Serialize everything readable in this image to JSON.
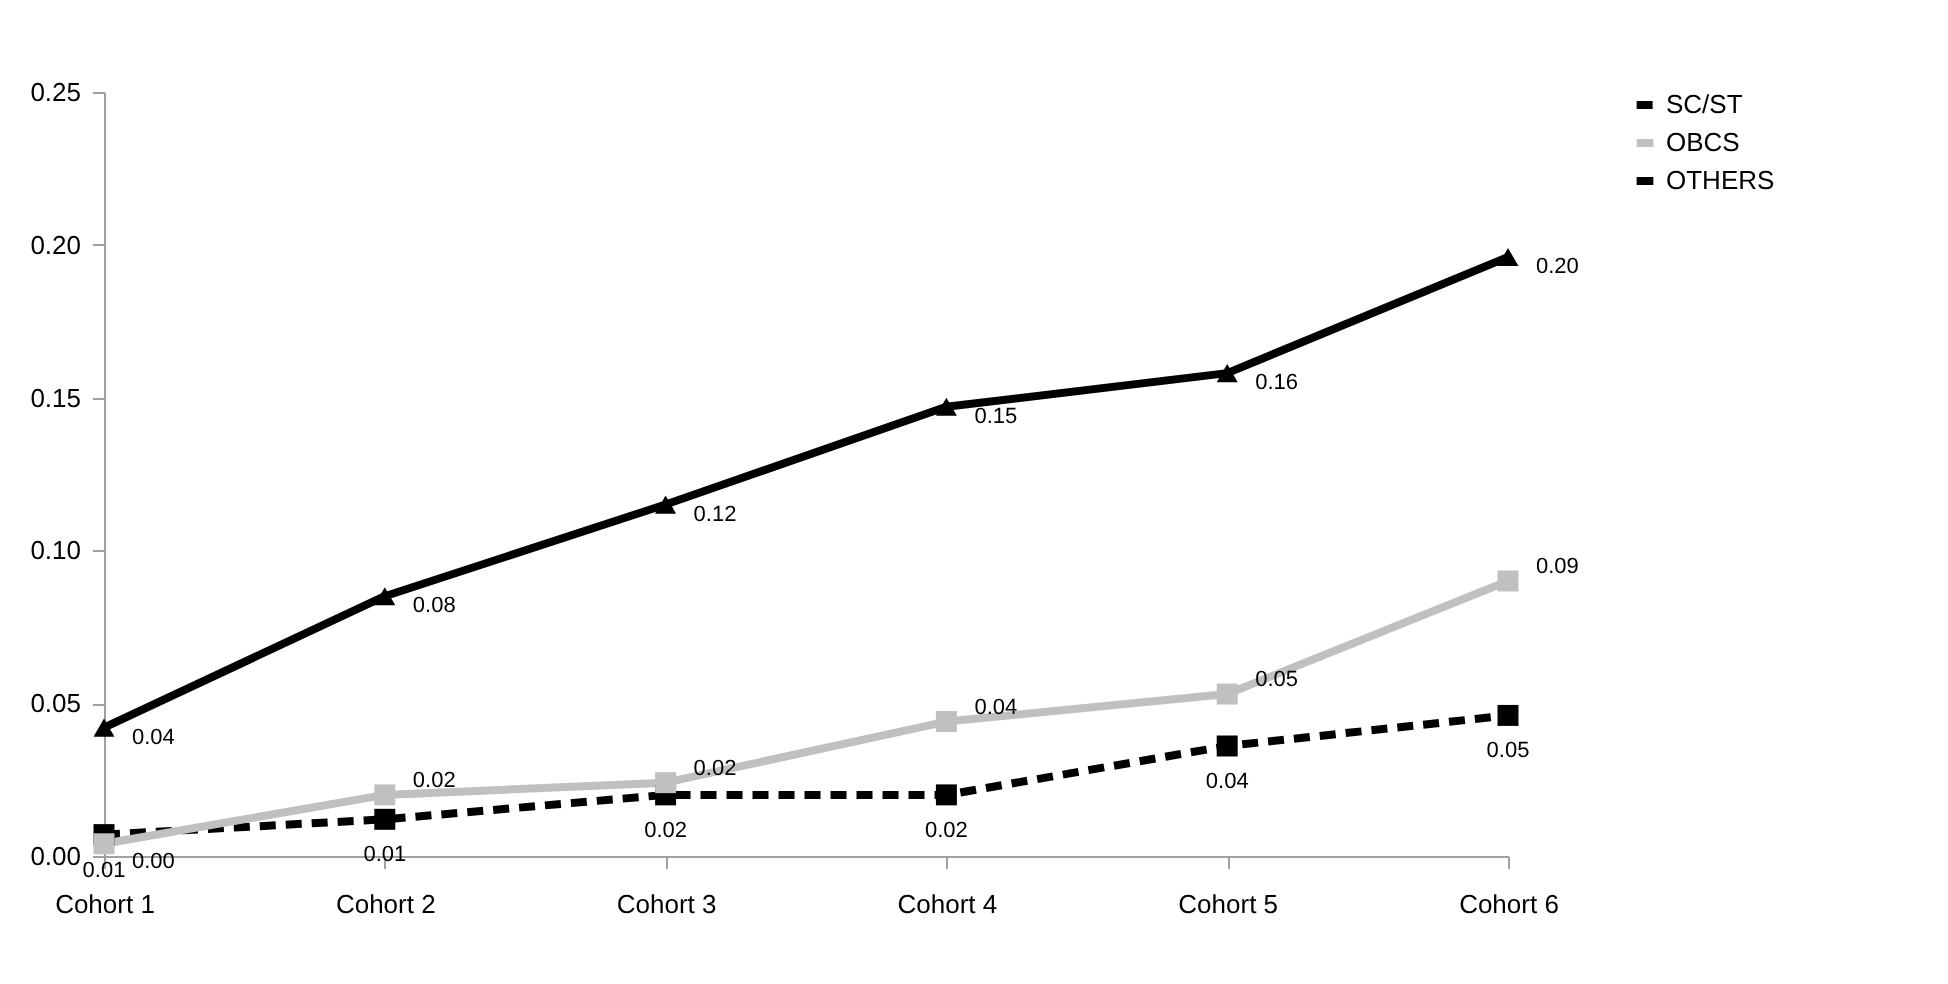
{
  "chart_data": {
    "type": "line",
    "categories": [
      "Cohort 1",
      "Cohort 2",
      "Cohort 3",
      "Cohort 4",
      "Cohort 5",
      "Cohort 6"
    ],
    "series": [
      {
        "name": "SC/ST",
        "color": "#000000",
        "line_style": "dashed",
        "marker": "square",
        "values": [
          0.007,
          0.012,
          0.02,
          0.02,
          0.036,
          0.046
        ],
        "value_labels": [
          "0.01",
          "0.01",
          "0.02",
          "0.02",
          "0.04",
          "0.05"
        ]
      },
      {
        "name": "OBCS",
        "color": "#c0c0c0",
        "line_style": "solid",
        "marker": "square",
        "values": [
          0.004,
          0.02,
          0.024,
          0.044,
          0.053,
          0.09
        ],
        "value_labels": [
          "0.00",
          "0.02",
          "0.02",
          "0.04",
          "0.05",
          "0.09"
        ]
      },
      {
        "name": "OTHERS",
        "color": "#000000",
        "line_style": "solid",
        "marker": "triangle",
        "values": [
          0.042,
          0.085,
          0.115,
          0.147,
          0.158,
          0.196
        ],
        "value_labels": [
          "0.04",
          "0.08",
          "0.12",
          "0.15",
          "0.16",
          "0.20"
        ]
      }
    ],
    "ylim": [
      0,
      0.25
    ],
    "yticks": [
      {
        "value": 0,
        "label": "0.00"
      },
      0.05,
      {
        "value": 0.1,
        "label": "0.10"
      },
      0.15,
      {
        "value": 0.2,
        "label": "0.20"
      },
      0.25
    ],
    "grid": false,
    "legend": "right"
  }
}
